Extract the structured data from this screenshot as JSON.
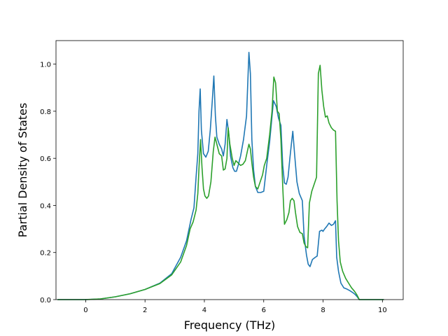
{
  "chart_data": {
    "type": "line",
    "title": "",
    "xlabel": "Frequency (THz)",
    "ylabel": "Partial Density of States",
    "xlim": [
      -1.0,
      10.7
    ],
    "ylim": [
      0.0,
      1.1
    ],
    "xticks": [
      0,
      2,
      4,
      6,
      8,
      10
    ],
    "yticks": [
      0.0,
      0.2,
      0.4,
      0.6,
      0.8,
      1.0
    ],
    "xtick_labels": [
      "0",
      "2",
      "4",
      "6",
      "8",
      "10"
    ],
    "ytick_labels": [
      "0.0",
      "0.2",
      "0.4",
      "0.6",
      "0.8",
      "1.0"
    ],
    "grid": false,
    "legend": "none",
    "series": [
      {
        "color": "#1f77b4",
        "points": [
          [
            -0.95,
            0.0
          ],
          [
            0.0,
            0.0
          ],
          [
            0.5,
            0.003
          ],
          [
            1.0,
            0.012
          ],
          [
            1.5,
            0.025
          ],
          [
            2.0,
            0.043
          ],
          [
            2.5,
            0.07
          ],
          [
            2.9,
            0.11
          ],
          [
            3.2,
            0.18
          ],
          [
            3.4,
            0.25
          ],
          [
            3.55,
            0.34
          ],
          [
            3.65,
            0.39
          ],
          [
            3.72,
            0.52
          ],
          [
            3.78,
            0.62
          ],
          [
            3.82,
            0.8
          ],
          [
            3.86,
            0.895
          ],
          [
            3.9,
            0.72
          ],
          [
            3.97,
            0.62
          ],
          [
            4.05,
            0.605
          ],
          [
            4.13,
            0.63
          ],
          [
            4.2,
            0.72
          ],
          [
            4.27,
            0.85
          ],
          [
            4.32,
            0.95
          ],
          [
            4.37,
            0.78
          ],
          [
            4.42,
            0.69
          ],
          [
            4.5,
            0.66
          ],
          [
            4.58,
            0.64
          ],
          [
            4.64,
            0.61
          ],
          [
            4.7,
            0.66
          ],
          [
            4.76,
            0.765
          ],
          [
            4.82,
            0.71
          ],
          [
            4.88,
            0.61
          ],
          [
            4.96,
            0.56
          ],
          [
            5.02,
            0.545
          ],
          [
            5.08,
            0.545
          ],
          [
            5.15,
            0.575
          ],
          [
            5.22,
            0.61
          ],
          [
            5.32,
            0.68
          ],
          [
            5.42,
            0.78
          ],
          [
            5.5,
            1.05
          ],
          [
            5.55,
            0.96
          ],
          [
            5.6,
            0.68
          ],
          [
            5.66,
            0.55
          ],
          [
            5.72,
            0.48
          ],
          [
            5.8,
            0.455
          ],
          [
            5.9,
            0.455
          ],
          [
            6.0,
            0.46
          ],
          [
            6.1,
            0.57
          ],
          [
            6.2,
            0.67
          ],
          [
            6.33,
            0.845
          ],
          [
            6.42,
            0.82
          ],
          [
            6.5,
            0.77
          ],
          [
            6.58,
            0.74
          ],
          [
            6.64,
            0.57
          ],
          [
            6.7,
            0.495
          ],
          [
            6.76,
            0.49
          ],
          [
            6.82,
            0.52
          ],
          [
            6.88,
            0.6
          ],
          [
            6.94,
            0.67
          ],
          [
            6.98,
            0.715
          ],
          [
            7.04,
            0.62
          ],
          [
            7.12,
            0.5
          ],
          [
            7.2,
            0.45
          ],
          [
            7.3,
            0.42
          ],
          [
            7.36,
            0.27
          ],
          [
            7.44,
            0.19
          ],
          [
            7.5,
            0.15
          ],
          [
            7.56,
            0.14
          ],
          [
            7.64,
            0.17
          ],
          [
            7.74,
            0.18
          ],
          [
            7.8,
            0.185
          ],
          [
            7.88,
            0.29
          ],
          [
            7.96,
            0.295
          ],
          [
            8.0,
            0.29
          ],
          [
            8.05,
            0.3
          ],
          [
            8.12,
            0.31
          ],
          [
            8.2,
            0.325
          ],
          [
            8.28,
            0.315
          ],
          [
            8.35,
            0.32
          ],
          [
            8.42,
            0.335
          ],
          [
            8.46,
            0.18
          ],
          [
            8.52,
            0.12
          ],
          [
            8.6,
            0.07
          ],
          [
            8.7,
            0.05
          ],
          [
            8.8,
            0.045
          ],
          [
            8.9,
            0.038
          ],
          [
            9.0,
            0.03
          ],
          [
            9.08,
            0.022
          ],
          [
            9.15,
            0.012
          ],
          [
            9.22,
            0.0
          ],
          [
            10.05,
            0.0
          ]
        ]
      },
      {
        "color": "#2ca02c",
        "points": [
          [
            -0.95,
            0.0
          ],
          [
            0.0,
            0.0
          ],
          [
            0.5,
            0.003
          ],
          [
            1.0,
            0.012
          ],
          [
            1.5,
            0.025
          ],
          [
            2.0,
            0.043
          ],
          [
            2.5,
            0.068
          ],
          [
            2.9,
            0.105
          ],
          [
            3.2,
            0.16
          ],
          [
            3.4,
            0.23
          ],
          [
            3.52,
            0.3
          ],
          [
            3.62,
            0.33
          ],
          [
            3.72,
            0.38
          ],
          [
            3.78,
            0.45
          ],
          [
            3.82,
            0.56
          ],
          [
            3.87,
            0.68
          ],
          [
            3.92,
            0.56
          ],
          [
            3.97,
            0.47
          ],
          [
            4.02,
            0.44
          ],
          [
            4.08,
            0.43
          ],
          [
            4.14,
            0.44
          ],
          [
            4.22,
            0.5
          ],
          [
            4.3,
            0.63
          ],
          [
            4.36,
            0.69
          ],
          [
            4.42,
            0.66
          ],
          [
            4.5,
            0.62
          ],
          [
            4.58,
            0.61
          ],
          [
            4.64,
            0.55
          ],
          [
            4.7,
            0.555
          ],
          [
            4.76,
            0.6
          ],
          [
            4.8,
            0.73
          ],
          [
            4.86,
            0.66
          ],
          [
            4.94,
            0.6
          ],
          [
            5.0,
            0.57
          ],
          [
            5.06,
            0.59
          ],
          [
            5.14,
            0.58
          ],
          [
            5.22,
            0.57
          ],
          [
            5.3,
            0.575
          ],
          [
            5.38,
            0.59
          ],
          [
            5.45,
            0.63
          ],
          [
            5.5,
            0.66
          ],
          [
            5.55,
            0.64
          ],
          [
            5.6,
            0.58
          ],
          [
            5.66,
            0.52
          ],
          [
            5.72,
            0.48
          ],
          [
            5.8,
            0.47
          ],
          [
            5.88,
            0.5
          ],
          [
            5.96,
            0.53
          ],
          [
            6.02,
            0.57
          ],
          [
            6.1,
            0.6
          ],
          [
            6.2,
            0.7
          ],
          [
            6.28,
            0.8
          ],
          [
            6.34,
            0.945
          ],
          [
            6.4,
            0.92
          ],
          [
            6.46,
            0.8
          ],
          [
            6.52,
            0.79
          ],
          [
            6.58,
            0.68
          ],
          [
            6.64,
            0.48
          ],
          [
            6.7,
            0.32
          ],
          [
            6.78,
            0.34
          ],
          [
            6.85,
            0.37
          ],
          [
            6.9,
            0.42
          ],
          [
            6.96,
            0.43
          ],
          [
            7.02,
            0.42
          ],
          [
            7.07,
            0.37
          ],
          [
            7.14,
            0.31
          ],
          [
            7.22,
            0.285
          ],
          [
            7.3,
            0.28
          ],
          [
            7.36,
            0.24
          ],
          [
            7.42,
            0.225
          ],
          [
            7.48,
            0.22
          ],
          [
            7.54,
            0.41
          ],
          [
            7.62,
            0.46
          ],
          [
            7.7,
            0.49
          ],
          [
            7.78,
            0.52
          ],
          [
            7.84,
            0.96
          ],
          [
            7.9,
            0.995
          ],
          [
            7.96,
            0.89
          ],
          [
            8.02,
            0.82
          ],
          [
            8.08,
            0.775
          ],
          [
            8.14,
            0.78
          ],
          [
            8.2,
            0.75
          ],
          [
            8.28,
            0.73
          ],
          [
            8.35,
            0.72
          ],
          [
            8.42,
            0.715
          ],
          [
            8.47,
            0.42
          ],
          [
            8.52,
            0.25
          ],
          [
            8.58,
            0.16
          ],
          [
            8.66,
            0.12
          ],
          [
            8.76,
            0.09
          ],
          [
            8.86,
            0.07
          ],
          [
            8.96,
            0.05
          ],
          [
            9.06,
            0.035
          ],
          [
            9.14,
            0.02
          ],
          [
            9.22,
            0.0
          ],
          [
            10.05,
            0.0
          ]
        ]
      }
    ]
  }
}
